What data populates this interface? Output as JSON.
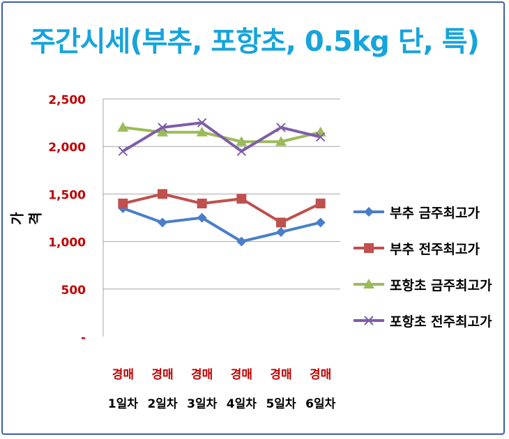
{
  "chart_data": {
    "type": "line",
    "title": "주간시세(부추, 포항초, 0.5kg 단, 특)",
    "ylabel": "가격",
    "xlabel": "",
    "categories": [
      [
        "경매",
        "1일차"
      ],
      [
        "경매",
        "2일차"
      ],
      [
        "경매",
        "3일차"
      ],
      [
        "경매",
        "4일차"
      ],
      [
        "경매",
        "5일차"
      ],
      [
        "경매",
        "6일차"
      ]
    ],
    "ylim": [
      0,
      2500
    ],
    "yticks": [
      {
        "value": 0,
        "label": "-"
      },
      {
        "value": 500,
        "label": "500"
      },
      {
        "value": 1000,
        "label": "1,000"
      },
      {
        "value": 1500,
        "label": "1,500"
      },
      {
        "value": 2000,
        "label": "2,000"
      },
      {
        "value": 2500,
        "label": "2,500"
      }
    ],
    "grid": true,
    "legend_position": "right",
    "series": [
      {
        "name": "부추 금주최고가",
        "values": [
          1350,
          1200,
          1250,
          1000,
          1100,
          1200
        ],
        "color": "#4a7ec8",
        "marker": "diamond"
      },
      {
        "name": "부추 전주최고가",
        "values": [
          1400,
          1500,
          1400,
          1450,
          1200,
          1400
        ],
        "color": "#c0504d",
        "marker": "square"
      },
      {
        "name": "포항초 금주최고가",
        "values": [
          2200,
          2150,
          2150,
          2050,
          2050,
          2150
        ],
        "color": "#9bbb59",
        "marker": "triangle"
      },
      {
        "name": "포항초 전주최고가",
        "values": [
          1950,
          2200,
          2250,
          1950,
          2200,
          2100
        ],
        "color": "#7f5ca8",
        "marker": "x"
      }
    ],
    "colors": {
      "title": "#17a4dc",
      "tick_labels": "#c00000",
      "frame": "#3a5fa8",
      "grid": "#a6a6a6"
    }
  }
}
